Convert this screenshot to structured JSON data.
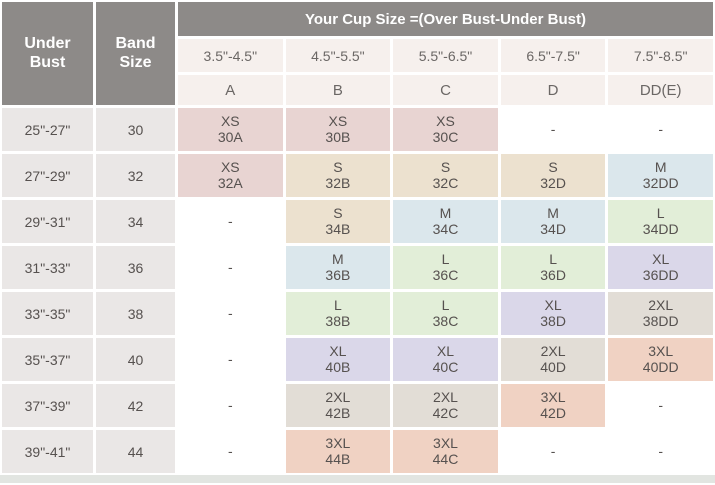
{
  "chart_data": {
    "type": "table",
    "title": "Your Cup Size =(Over Bust-Under Bust)",
    "corner_headers": [
      "Under Bust",
      "Band Size"
    ],
    "cup_ranges": [
      "3.5\"-4.5\"",
      "4.5\"-5.5\"",
      "5.5\"-6.5\"",
      "6.5\"-7.5\"",
      "7.5\"-8.5\""
    ],
    "cup_letters": [
      "A",
      "B",
      "C",
      "D",
      "DD(E)"
    ],
    "rows": [
      {
        "under_bust": "25\"-27\"",
        "band": "30",
        "cells": [
          {
            "size": "XS",
            "code": "30A"
          },
          {
            "size": "XS",
            "code": "30B"
          },
          {
            "size": "XS",
            "code": "30C"
          },
          {
            "dash": "-"
          },
          {
            "dash": "-"
          }
        ]
      },
      {
        "under_bust": "27\"-29\"",
        "band": "32",
        "cells": [
          {
            "size": "XS",
            "code": "32A"
          },
          {
            "size": "S",
            "code": "32B"
          },
          {
            "size": "S",
            "code": "32C"
          },
          {
            "size": "S",
            "code": "32D"
          },
          {
            "size": "M",
            "code": "32DD"
          }
        ]
      },
      {
        "under_bust": "29\"-31\"",
        "band": "34",
        "cells": [
          {
            "dash": "-"
          },
          {
            "size": "S",
            "code": "34B"
          },
          {
            "size": "M",
            "code": "34C"
          },
          {
            "size": "M",
            "code": "34D"
          },
          {
            "size": "L",
            "code": "34DD"
          }
        ]
      },
      {
        "under_bust": "31\"-33\"",
        "band": "36",
        "cells": [
          {
            "dash": "-"
          },
          {
            "size": "M",
            "code": "36B"
          },
          {
            "size": "L",
            "code": "36C"
          },
          {
            "size": "L",
            "code": "36D"
          },
          {
            "size": "XL",
            "code": "36DD"
          }
        ]
      },
      {
        "under_bust": "33\"-35\"",
        "band": "38",
        "cells": [
          {
            "dash": "-"
          },
          {
            "size": "L",
            "code": "38B"
          },
          {
            "size": "L",
            "code": "38C"
          },
          {
            "size": "XL",
            "code": "38D"
          },
          {
            "size": "2XL",
            "code": "38DD"
          }
        ]
      },
      {
        "under_bust": "35\"-37\"",
        "band": "40",
        "cells": [
          {
            "dash": "-"
          },
          {
            "size": "XL",
            "code": "40B"
          },
          {
            "size": "XL",
            "code": "40C"
          },
          {
            "size": "2XL",
            "code": "40D"
          },
          {
            "size": "3XL",
            "code": "40DD"
          }
        ]
      },
      {
        "under_bust": "37\"-39\"",
        "band": "42",
        "cells": [
          {
            "dash": "-"
          },
          {
            "size": "2XL",
            "code": "42B"
          },
          {
            "size": "2XL",
            "code": "42C"
          },
          {
            "size": "3XL",
            "code": "42D"
          },
          {
            "dash": "-"
          }
        ]
      },
      {
        "under_bust": "39\"-41\"",
        "band": "44",
        "cells": [
          {
            "dash": "-"
          },
          {
            "size": "3XL",
            "code": "44B"
          },
          {
            "size": "3XL",
            "code": "44C"
          },
          {
            "dash": "-"
          },
          {
            "dash": "-"
          }
        ]
      }
    ]
  },
  "colors": {
    "header_bg": "#8d8a88",
    "header_text": "#ffffff",
    "subheader_bg": "#f6f0ed",
    "subheader_text": "#6b6765",
    "rowlabel_bg": "#eae7e6",
    "cell_text": "#56514f",
    "empty_bg": "#ffffff",
    "bottom_strip": "#e2e5e1",
    "size_tones": {
      "XS": "#e8d4d2",
      "S": "#ece1cf",
      "M": "#dbe7ec",
      "L": "#e2eed8",
      "XL": "#dad7e9",
      "2XL": "#e2ddd6",
      "3XL": "#f0d2c3"
    }
  }
}
